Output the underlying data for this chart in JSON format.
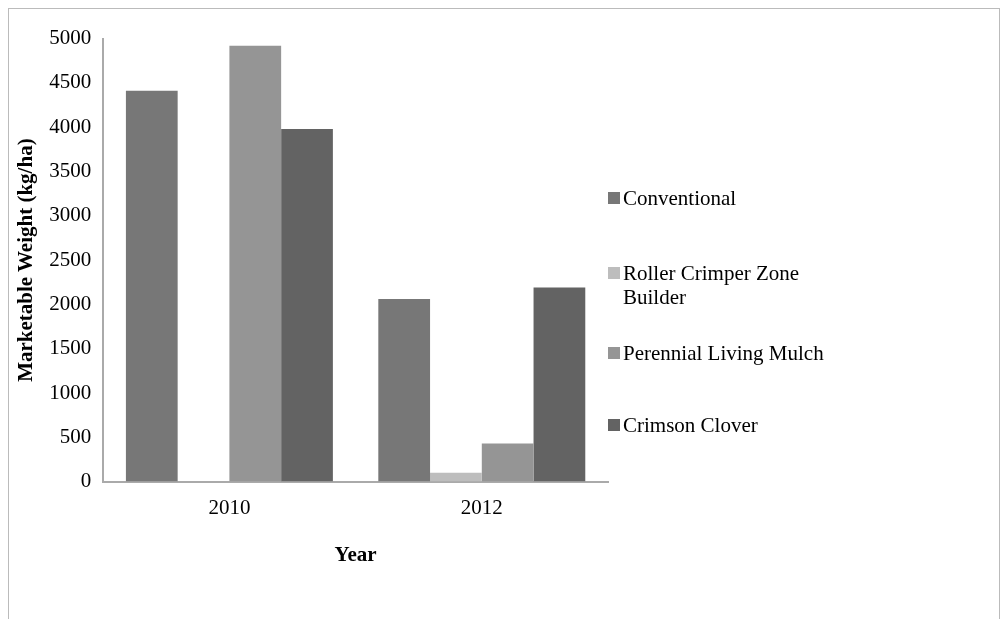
{
  "chart_data": {
    "type": "bar",
    "xlabel": "Year",
    "ylabel": "Marketable Weight (kg/ha)",
    "categories": [
      "2010",
      "2012"
    ],
    "series": [
      {
        "name": "Conventional",
        "color": "#777777",
        "values": [
          4410,
          2060
        ]
      },
      {
        "name": "Roller Crimper Zone Builder",
        "color": "#bdbdbd",
        "values": [
          0,
          100
        ]
      },
      {
        "name": "Perennial Living Mulch",
        "color": "#959595",
        "values": [
          4920,
          430
        ]
      },
      {
        "name": "Crimson Clover",
        "color": "#636363",
        "values": [
          3980,
          2190
        ]
      }
    ],
    "ylim": [
      0,
      5000
    ],
    "yticks": [
      0,
      500,
      1000,
      1500,
      2000,
      2500,
      3000,
      3500,
      4000,
      4500,
      5000
    ],
    "grid": false,
    "legend": "right"
  }
}
